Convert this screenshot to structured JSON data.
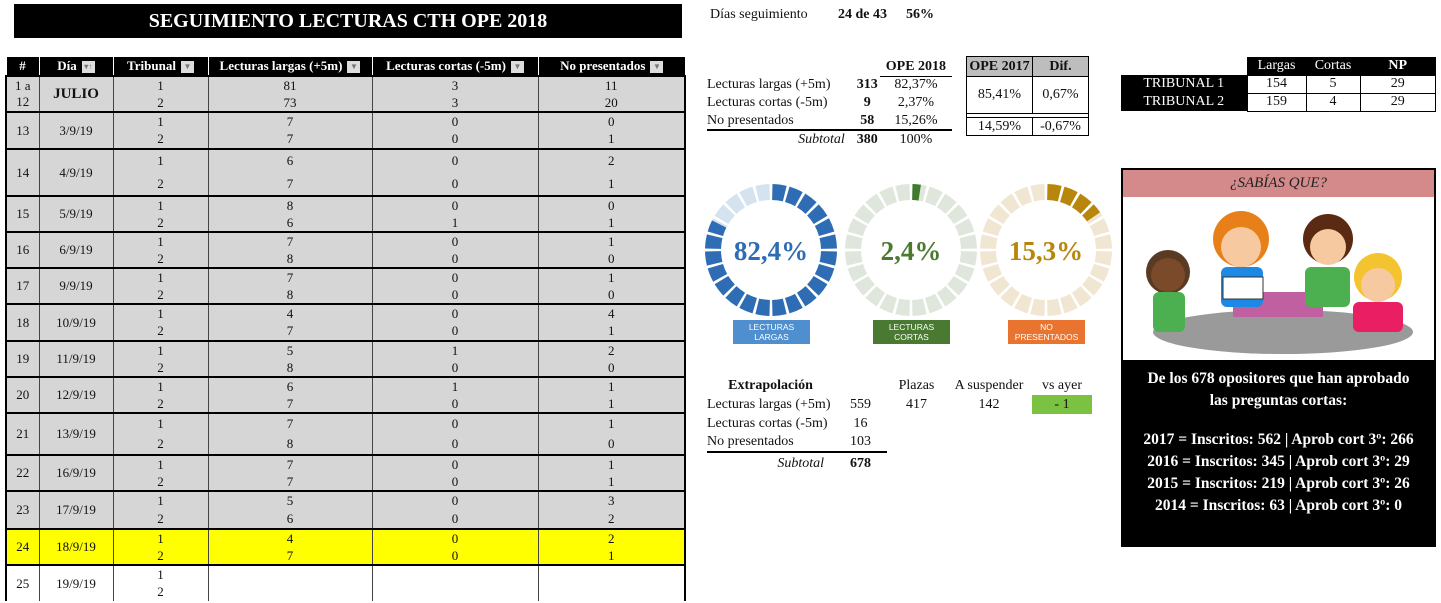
{
  "title": "SEGUIMIENTO LECTURAS CTH OPE 2018",
  "table": {
    "headers": [
      "#",
      "Día",
      "Tribunal",
      "Lecturas largas (+5m)",
      "Lecturas cortas (-5m)",
      "No presentados"
    ],
    "rows": [
      {
        "n": "1 a 12",
        "day": "JULIO",
        "t": [
          "1",
          "2"
        ],
        "largas": [
          "81",
          "73"
        ],
        "cortas": [
          "3",
          "3"
        ],
        "np": [
          "11",
          "20"
        ]
      },
      {
        "n": "13",
        "day": "3/9/19",
        "t": [
          "1",
          "2"
        ],
        "largas": [
          "7",
          "7"
        ],
        "cortas": [
          "0",
          "0"
        ],
        "np": [
          "0",
          "1"
        ]
      },
      {
        "n": "14",
        "day": "4/9/19",
        "t": [
          "1",
          "2"
        ],
        "largas": [
          "6",
          "7"
        ],
        "cortas": [
          "0",
          "0"
        ],
        "np": [
          "2",
          "1"
        ]
      },
      {
        "n": "15",
        "day": "5/9/19",
        "t": [
          "1",
          "2"
        ],
        "largas": [
          "8",
          "6"
        ],
        "cortas": [
          "0",
          "1"
        ],
        "np": [
          "0",
          "1"
        ]
      },
      {
        "n": "16",
        "day": "6/9/19",
        "t": [
          "1",
          "2"
        ],
        "largas": [
          "7",
          "8"
        ],
        "cortas": [
          "0",
          "0"
        ],
        "np": [
          "1",
          "0"
        ]
      },
      {
        "n": "17",
        "day": "9/9/19",
        "t": [
          "1",
          "2"
        ],
        "largas": [
          "7",
          "8"
        ],
        "cortas": [
          "0",
          "0"
        ],
        "np": [
          "1",
          "0"
        ]
      },
      {
        "n": "18",
        "day": "10/9/19",
        "t": [
          "1",
          "2"
        ],
        "largas": [
          "4",
          "7"
        ],
        "cortas": [
          "0",
          "0"
        ],
        "np": [
          "4",
          "1"
        ]
      },
      {
        "n": "19",
        "day": "11/9/19",
        "t": [
          "1",
          "2"
        ],
        "largas": [
          "5",
          "8"
        ],
        "cortas": [
          "1",
          "0"
        ],
        "np": [
          "2",
          "0"
        ]
      },
      {
        "n": "20",
        "day": "12/9/19",
        "t": [
          "1",
          "2"
        ],
        "largas": [
          "6",
          "7"
        ],
        "cortas": [
          "1",
          "0"
        ],
        "np": [
          "1",
          "1"
        ]
      },
      {
        "n": "21",
        "day": "13/9/19",
        "t": [
          "1",
          "2"
        ],
        "largas": [
          "7",
          "8"
        ],
        "cortas": [
          "0",
          "0"
        ],
        "np": [
          "1",
          "0"
        ]
      },
      {
        "n": "22",
        "day": "16/9/19",
        "t": [
          "1",
          "2"
        ],
        "largas": [
          "7",
          "7"
        ],
        "cortas": [
          "0",
          "0"
        ],
        "np": [
          "1",
          "1"
        ]
      },
      {
        "n": "23",
        "day": "17/9/19",
        "t": [
          "1",
          "2"
        ],
        "largas": [
          "5",
          "6"
        ],
        "cortas": [
          "0",
          "0"
        ],
        "np": [
          "3",
          "2"
        ]
      },
      {
        "n": "24",
        "day": "18/9/19",
        "t": [
          "1",
          "2"
        ],
        "largas": [
          "4",
          "7"
        ],
        "cortas": [
          "0",
          "0"
        ],
        "np": [
          "2",
          "1"
        ],
        "highlight": true
      },
      {
        "n": "25",
        "day": "19/9/19",
        "t": [
          "1",
          "2"
        ],
        "largas": [
          "",
          ""
        ],
        "cortas": [
          "",
          ""
        ],
        "np": [
          "",
          ""
        ],
        "empty": true
      }
    ]
  },
  "dias": {
    "label": "Días seguimiento",
    "value": "24 de 43",
    "pct": "56%"
  },
  "summary": {
    "col": "OPE 2018",
    "rows": [
      {
        "label": "Lecturas largas  (+5m)",
        "n": "313",
        "pct": "82,37%"
      },
      {
        "label": "Lecturas cortas (-5m)",
        "n": "9",
        "pct": "2,37%"
      },
      {
        "label": "No presentados",
        "n": "58",
        "pct": "15,26%"
      }
    ],
    "subtotal_label": "Subtotal",
    "subtotal": "380",
    "subtotal_pct": "100%"
  },
  "compare": {
    "h1": "OPE 2017",
    "h2": "Dif.",
    "r1": [
      "85,41%",
      "0,67%"
    ],
    "r2": [
      "14,59%",
      "-0,67%"
    ]
  },
  "tribunales": {
    "headers": [
      "Largas",
      "Cortas",
      "NP"
    ],
    "rows": [
      {
        "name": "TRIBUNAL 1",
        "v": [
          "154",
          "5",
          "29"
        ]
      },
      {
        "name": "TRIBUNAL 2",
        "v": [
          "159",
          "4",
          "29"
        ]
      }
    ]
  },
  "donuts": [
    {
      "value": "82,4%",
      "pct": 82.4,
      "label1": "LECTURAS",
      "label2": "LARGAS",
      "color": "#2e6db4",
      "light": "#d5e2f0",
      "text": "#2e6db4",
      "tag": "#4f8fcf"
    },
    {
      "value": "2,4%",
      "pct": 2.4,
      "label1": "LECTURAS",
      "label2": "CORTAS",
      "color": "#3f7a2e",
      "light": "#dfe6dc",
      "text": "#4a7a2f",
      "tag": "#4a7a32"
    },
    {
      "value": "15,3%",
      "pct": 15.3,
      "label1": "NO",
      "label2": "PRESENTADOS",
      "color": "#b8860b",
      "light": "#f0e6d2",
      "text": "#b8860b",
      "tag": "#e87430"
    }
  ],
  "extrap": {
    "title": "Extrapolación",
    "h": [
      "Plazas",
      "A suspender",
      "vs ayer"
    ],
    "rows": [
      {
        "label": "Lecturas largas  (+5m)",
        "n": "559"
      },
      {
        "label": "Lecturas cortas (-5m)",
        "n": "16"
      },
      {
        "label": "No presentados",
        "n": "103"
      }
    ],
    "plazas": "417",
    "suspender": "142",
    "vs_ayer": "- 1",
    "subtotal_label": "Subtotal",
    "subtotal": "678"
  },
  "sabias": {
    "header": "¿SABÍAS QUE?",
    "l1": "De los 678 opositores que han aprobado",
    "l2": "las preguntas cortas:",
    "facts": [
      "2017 = Inscritos: 562 | Aprob cort 3º: 266",
      "2016 = Inscritos: 345 | Aprob cort 3º: 29",
      "2015 = Inscritos: 219 | Aprob cort 3º: 26",
      "2014 = Inscritos: 63 | Aprob cort 3º: 0"
    ]
  }
}
